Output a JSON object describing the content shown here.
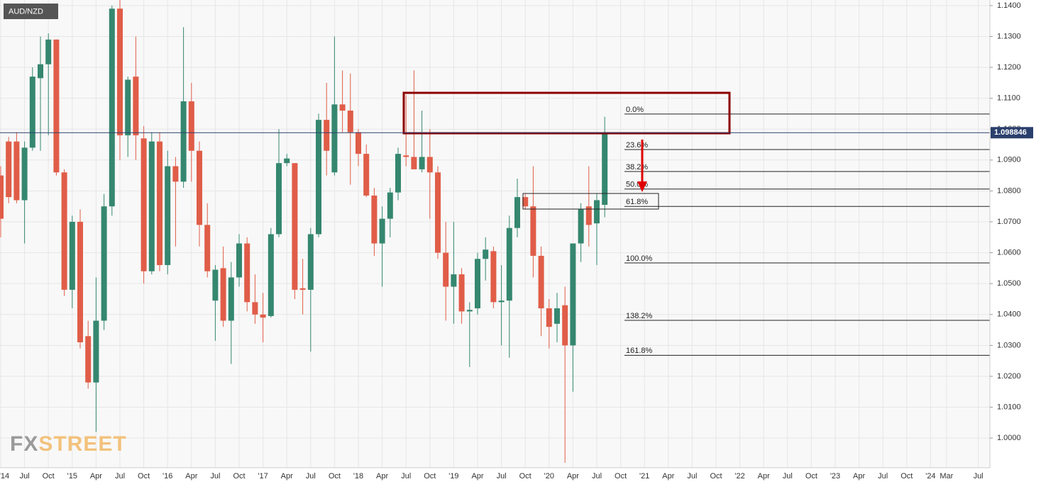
{
  "chart_data": {
    "type": "candlestick",
    "title": "AUD/NZD",
    "watermark_fx": "FX",
    "watermark_street": "STREET",
    "up_color": "#35876f",
    "down_color": "#e05d48",
    "grid": true,
    "ylim": [
      0.9904,
      1.1418
    ],
    "yticks": [
      {
        "value": 1.14,
        "label": "1.1400"
      },
      {
        "value": 1.13,
        "label": "1.1300"
      },
      {
        "value": 1.12,
        "label": "1.1200"
      },
      {
        "value": 1.11,
        "label": "1.1100"
      },
      {
        "value": 1.1,
        "label": "1.1000"
      },
      {
        "value": 1.09,
        "label": "1.0900"
      },
      {
        "value": 1.08,
        "label": "1.0800"
      },
      {
        "value": 1.07,
        "label": "1.0700"
      },
      {
        "value": 1.06,
        "label": "1.0600"
      },
      {
        "value": 1.05,
        "label": "1.0500"
      },
      {
        "value": 1.04,
        "label": "1.0400"
      },
      {
        "value": 1.03,
        "label": "1.0300"
      },
      {
        "value": 1.02,
        "label": "1.0200"
      },
      {
        "value": 1.01,
        "label": "1.0100"
      },
      {
        "value": 1.0,
        "label": "1.0000"
      }
    ],
    "last_price": 1.098846,
    "categories": [
      "'14",
      null,
      null,
      "Jul",
      null,
      null,
      "Oct",
      null,
      null,
      "'15",
      null,
      null,
      "Apr",
      null,
      null,
      "Jul",
      null,
      null,
      "Oct",
      null,
      null,
      "'16",
      null,
      null,
      "Apr",
      null,
      null,
      "Jul",
      null,
      null,
      "Oct",
      null,
      null,
      "'17",
      null,
      null,
      "Apr",
      null,
      null,
      "Jul",
      null,
      null,
      "Oct",
      null,
      null,
      "'18",
      null,
      null,
      "Apr",
      null,
      null,
      "Jul",
      null,
      null,
      "Oct",
      null,
      null,
      "'19",
      null,
      null,
      "Apr",
      null,
      null,
      "Jul",
      null,
      null,
      "Oct",
      null,
      null,
      "'20",
      null,
      null,
      "Apr",
      null,
      null,
      "Jul",
      null,
      null,
      "Oct",
      null,
      null,
      "'21",
      null,
      null,
      "Apr",
      null,
      null,
      "Jul",
      null,
      null,
      "Oct",
      null,
      null,
      "'22",
      null,
      null,
      "Apr",
      null,
      null,
      "Jul",
      null,
      null,
      "Oct",
      null,
      null,
      "'23",
      null,
      null,
      "Apr",
      null,
      null,
      "Jul",
      null,
      null,
      "Oct",
      null,
      null,
      "'24",
      null,
      "Mar",
      null,
      null,
      null,
      "Jul"
    ],
    "open": [
      1.085,
      1.096,
      1.096,
      1.077,
      1.094,
      1.1165,
      1.121,
      1.129,
      1.086,
      1.048,
      1.07,
      1.033,
      1.018,
      1.038,
      1.075,
      1.139,
      1.098,
      1.117,
      1.097,
      1.054,
      1.096,
      1.056,
      1.088,
      1.083,
      1.109,
      1.093,
      1.069,
      1.0445,
      1.055,
      1.038,
      1.052,
      1.063,
      1.044,
      1.04,
      1.0395,
      1.066,
      1.089,
      1.089,
      1.0485,
      1.048,
      1.066,
      1.103,
      1.086,
      1.108,
      1.106,
      1.099,
      1.092,
      1.0785,
      1.063,
      1.071,
      1.0795,
      1.0915,
      1.091,
      1.087,
      1.091,
      1.086,
      1.06,
      1.049,
      1.053,
      1.041,
      1.042,
      1.058,
      1.0605,
      1.044,
      1.0445,
      1.068,
      1.078,
      1.075,
      1.059,
      1.042,
      1.037,
      1.043,
      1.03,
      1.063,
      1.075,
      1.0695,
      1.0755,
      null,
      null,
      null,
      null,
      null,
      null,
      null,
      null,
      null,
      null,
      null,
      null,
      null,
      null,
      null,
      null,
      null,
      null,
      null,
      null,
      null,
      null,
      null,
      null,
      null,
      null,
      null,
      null,
      null,
      null,
      null,
      null,
      null,
      null,
      null,
      null,
      null,
      null,
      null,
      null,
      null,
      null,
      null,
      null,
      null,
      null,
      null
    ],
    "high": [
      1.088,
      1.0975,
      1.099,
      1.096,
      1.12,
      1.13,
      1.131,
      1.129,
      1.087,
      1.072,
      1.074,
      1.038,
      1.052,
      1.079,
      1.14,
      1.142,
      1.117,
      1.13,
      1.101,
      1.099,
      1.099,
      1.093,
      1.091,
      1.133,
      1.115,
      1.096,
      1.076,
      1.056,
      1.062,
      1.057,
      1.066,
      1.065,
      1.053,
      1.047,
      1.068,
      1.1,
      1.092,
      1.089,
      1.058,
      1.068,
      1.105,
      1.115,
      1.13,
      1.119,
      1.118,
      1.1,
      1.095,
      1.081,
      1.075,
      1.081,
      1.094,
      1.111,
      1.119,
      1.106,
      1.1,
      1.088,
      1.07,
      1.07,
      1.055,
      1.044,
      1.06,
      1.065,
      1.062,
      1.056,
      1.072,
      1.084,
      1.079,
      1.088,
      1.062,
      1.045,
      1.047,
      1.049,
      1.063,
      1.076,
      1.088,
      1.079,
      1.104,
      null,
      null,
      null,
      null,
      null,
      null,
      null,
      null,
      null,
      null,
      null,
      null,
      null,
      null,
      null,
      null,
      null,
      null,
      null,
      null,
      null,
      null,
      null,
      null,
      null,
      null,
      null,
      null,
      null,
      null,
      null,
      null,
      null,
      null,
      null,
      null,
      null,
      null,
      null,
      null,
      null,
      null,
      null,
      null,
      null,
      null,
      null
    ],
    "low": [
      1.065,
      1.076,
      1.076,
      1.063,
      1.093,
      1.093,
      1.098,
      1.085,
      1.046,
      1.042,
      1.029,
      1.016,
      1.002,
      1.035,
      1.072,
      1.09,
      1.091,
      1.09,
      1.05,
      1.053,
      1.054,
      1.053,
      1.062,
      1.081,
      1.083,
      1.062,
      1.052,
      1.0315,
      1.036,
      1.024,
      1.049,
      1.041,
      1.037,
      1.031,
      1.039,
      1.065,
      1.088,
      1.045,
      1.04,
      1.028,
      1.065,
      1.085,
      1.085,
      1.099,
      1.082,
      1.088,
      1.078,
      1.059,
      1.049,
      1.065,
      1.077,
      1.088,
      1.088,
      1.086,
      1.071,
      1.058,
      1.038,
      1.037,
      1.037,
      1.023,
      1.04,
      1.051,
      1.042,
      1.03,
      1.026,
      1.065,
      1.074,
      1.052,
      1.033,
      1.029,
      1.031,
      0.992,
      1.015,
      1.057,
      1.062,
      1.056,
      1.0715,
      null,
      null,
      null,
      null,
      null,
      null,
      null,
      null,
      null,
      null,
      null,
      null,
      null,
      null,
      null,
      null,
      null,
      null,
      null,
      null,
      null,
      null,
      null,
      null,
      null,
      null,
      null,
      null,
      null,
      null,
      null,
      null,
      null,
      null,
      null,
      null,
      null,
      null,
      null,
      null,
      null,
      null,
      null,
      null,
      null,
      null,
      null
    ],
    "close": [
      1.071,
      1.078,
      1.077,
      1.094,
      1.117,
      1.121,
      1.129,
      1.086,
      1.048,
      1.07,
      1.031,
      1.018,
      1.038,
      1.075,
      1.139,
      1.098,
      1.116,
      1.098,
      1.054,
      1.096,
      1.056,
      1.088,
      1.083,
      1.109,
      1.093,
      1.069,
      1.054,
      1.0545,
      1.038,
      1.052,
      1.063,
      1.044,
      1.04,
      1.039,
      1.066,
      1.089,
      1.0905,
      1.048,
      1.048,
      1.066,
      1.103,
      1.093,
      1.108,
      1.106,
      1.099,
      1.092,
      1.0785,
      1.063,
      1.071,
      1.0795,
      1.092,
      1.091,
      1.087,
      1.091,
      1.086,
      1.06,
      1.049,
      1.053,
      1.041,
      1.0415,
      1.058,
      1.061,
      1.044,
      1.0445,
      1.068,
      1.078,
      1.075,
      1.059,
      1.042,
      1.036,
      1.042,
      1.03,
      1.063,
      1.074,
      1.069,
      1.077,
      1.0985,
      null,
      null,
      null,
      null,
      null,
      null,
      null,
      null,
      null,
      null,
      null,
      null,
      null,
      null,
      null,
      null,
      null,
      null,
      null,
      null,
      null,
      null,
      null,
      null,
      null,
      null,
      null,
      null,
      null,
      null,
      null,
      null,
      null,
      null,
      null,
      null,
      null,
      null,
      null,
      null,
      null,
      null,
      null,
      null,
      null,
      null,
      null
    ],
    "fib_levels": [
      {
        "label": "0.0%",
        "price": 1.1049
      },
      {
        "label": "23.6%",
        "price": 1.0934
      },
      {
        "label": "38.2%",
        "price": 1.0863
      },
      {
        "label": "50.0%",
        "price": 1.0806
      },
      {
        "label": "61.8%",
        "price": 1.075
      },
      {
        "label": "100.0%",
        "price": 1.0567
      },
      {
        "label": "138.2%",
        "price": 1.0381
      },
      {
        "label": "161.8%",
        "price": 1.0268
      }
    ]
  }
}
